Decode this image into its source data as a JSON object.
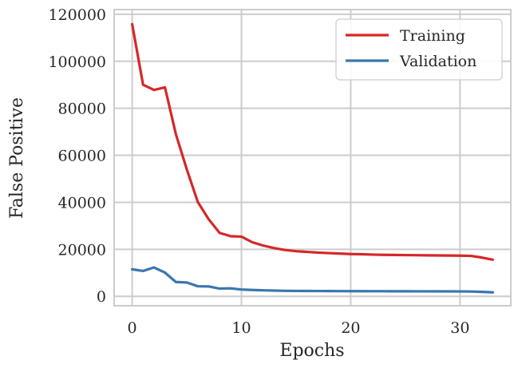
{
  "chart_data": {
    "type": "line",
    "xlabel": "Epochs",
    "ylabel": "False Positive",
    "xlim": [
      -1.65,
      34.65
    ],
    "ylim": [
      -4000,
      122000
    ],
    "x_ticks": [
      0,
      10,
      20,
      30
    ],
    "y_ticks": [
      0,
      20000,
      40000,
      60000,
      80000,
      100000,
      120000
    ],
    "grid": true,
    "legend_position": "top-right",
    "x": [
      0,
      1,
      2,
      3,
      4,
      5,
      6,
      7,
      8,
      9,
      10,
      11,
      12,
      13,
      14,
      15,
      16,
      17,
      18,
      19,
      20,
      21,
      22,
      23,
      24,
      25,
      26,
      27,
      28,
      29,
      30,
      31,
      32,
      33
    ],
    "series": [
      {
        "name": "Training",
        "color": "#d62728",
        "values": [
          115800,
          90000,
          87800,
          88900,
          69000,
          54000,
          40200,
          32800,
          27000,
          25600,
          25400,
          23000,
          21600,
          20500,
          19700,
          19200,
          18900,
          18600,
          18400,
          18200,
          18000,
          17900,
          17750,
          17650,
          17600,
          17550,
          17500,
          17450,
          17400,
          17350,
          17300,
          17200,
          16500,
          15600
        ]
      },
      {
        "name": "Validation",
        "color": "#3a77ad",
        "values": [
          11500,
          10800,
          12300,
          10100,
          6100,
          5900,
          4300,
          4200,
          3300,
          3400,
          2900,
          2700,
          2550,
          2450,
          2350,
          2300,
          2280,
          2260,
          2240,
          2220,
          2200,
          2190,
          2180,
          2170,
          2160,
          2150,
          2140,
          2130,
          2120,
          2110,
          2100,
          2050,
          1900,
          1700
        ]
      }
    ]
  }
}
